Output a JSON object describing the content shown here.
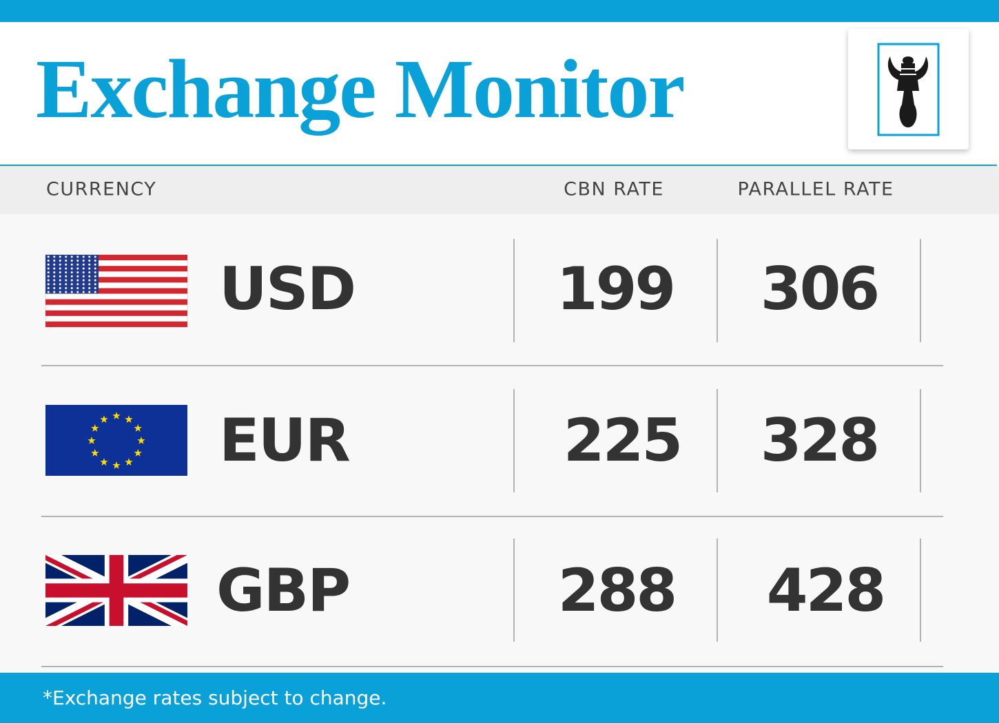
{
  "header": {
    "title": "Exchange Monitor"
  },
  "table": {
    "columns": [
      "CURRENCY",
      "CBN RATE",
      "PARALLEL RATE"
    ],
    "rows": [
      [
        "USD",
        199,
        306
      ],
      [
        "EUR",
        225,
        328
      ],
      [
        "GBP",
        288,
        428
      ]
    ]
  },
  "footer": {
    "note": "*Exchange rates subject to change."
  }
}
